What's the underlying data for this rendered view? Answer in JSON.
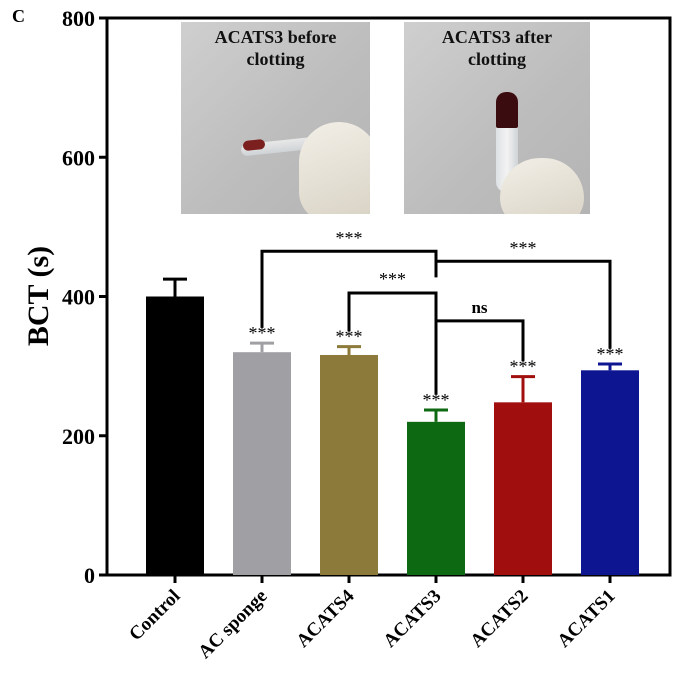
{
  "panel_label": "C",
  "photos": [
    {
      "caption_line1": "ACATS3 before",
      "caption_line2": "clotting"
    },
    {
      "caption_line1": "ACATS3  after",
      "caption_line2": "clotting"
    }
  ],
  "chart_data": {
    "type": "bar",
    "ylabel": "BCT (s)",
    "xlabel": "",
    "ylim": [
      0,
      800
    ],
    "yticks": [
      0,
      200,
      400,
      600,
      800
    ],
    "categories": [
      "Control",
      "AC sponge",
      "ACATS4",
      "ACATS3",
      "ACATS2",
      "ACATS1"
    ],
    "values": [
      400,
      320,
      316,
      220,
      248,
      294
    ],
    "errors": [
      25,
      13,
      12,
      17,
      37,
      9
    ],
    "colors": [
      "#000000",
      "#a0a0a4",
      "#8c7a3a",
      "#0e6a12",
      "#a10e0e",
      "#0e1590"
    ],
    "bar_labels": [
      "",
      "***",
      "***",
      "***",
      "***",
      "***"
    ],
    "comparisons": [
      {
        "from": "AC sponge",
        "to": "ACATS1",
        "pivot": "ACATS3",
        "y": 465,
        "label": "***"
      },
      {
        "from": "ACATS4",
        "to": "ACATS3",
        "y": 405,
        "label": "***"
      },
      {
        "from": "ACATS3",
        "to": "ACATS2",
        "y": 365,
        "label": "ns"
      }
    ]
  }
}
